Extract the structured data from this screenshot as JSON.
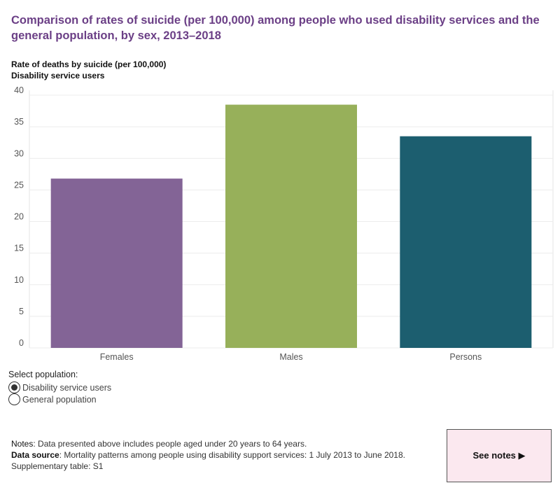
{
  "title": "Comparison of rates of suicide (per 100,000) among people who used disability services and the general population, by sex,  2013–2018",
  "y_caption_line1": "Rate of deaths by suicide (per 100,000)",
  "y_caption_line2": "Disability service users",
  "chart_data": {
    "type": "bar",
    "categories": [
      "Females",
      "Males",
      "Persons"
    ],
    "values": [
      26.8,
      38.5,
      33.5
    ],
    "colors": [
      "#836496",
      "#97b05a",
      "#1c5e6f"
    ],
    "ylim": [
      0,
      40
    ],
    "yticks": [
      0,
      5,
      10,
      15,
      20,
      25,
      30,
      35,
      40
    ],
    "grid": true
  },
  "selector": {
    "label": "Select population:",
    "options": [
      {
        "label": "Disability service users",
        "selected": true
      },
      {
        "label": "General population",
        "selected": false
      }
    ]
  },
  "notes": {
    "notes_key": "Notes",
    "notes_text": ": Data presented above includes people aged under 20 years to 64 years.",
    "source_key": "Data source",
    "source_text": ": Mortality patterns among people using disability support services: 1 July 2013 to June 2018.",
    "supp_text": "Supplementary table: S1"
  },
  "see_notes_label": "See notes ▶"
}
